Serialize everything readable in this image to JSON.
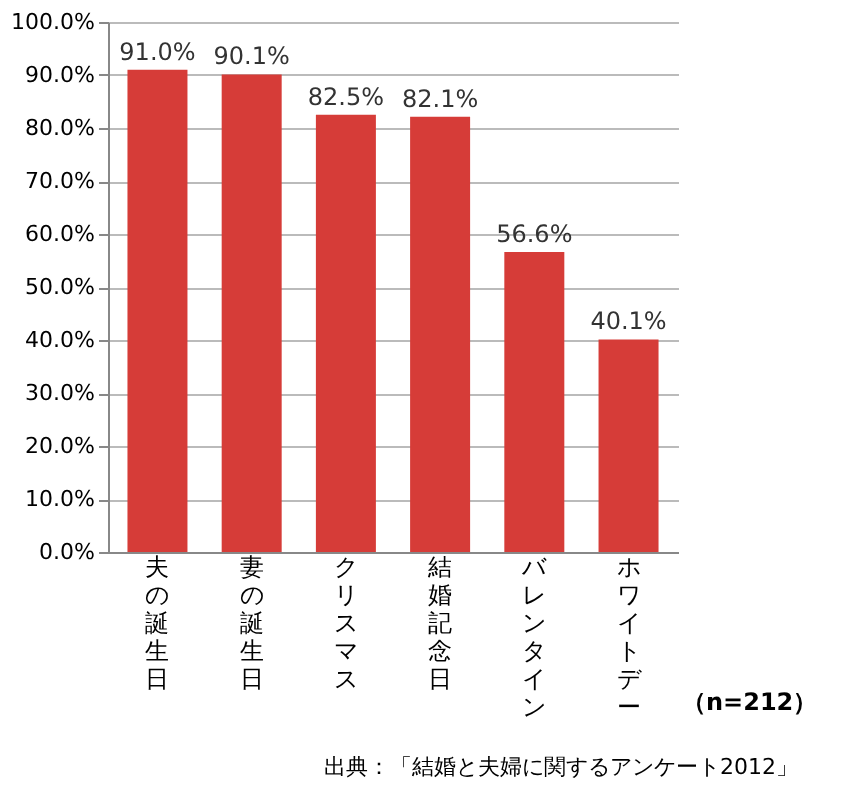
{
  "chart_data": {
    "type": "bar",
    "categories": [
      "夫の誕生日",
      "妻の誕生日",
      "クリスマス",
      "結婚記念日",
      "バレンタイン",
      "ホワイトデー"
    ],
    "values": [
      91.0,
      90.1,
      82.5,
      82.1,
      56.6,
      40.1
    ],
    "value_labels": [
      "91.0%",
      "90.1%",
      "82.5%",
      "82.1%",
      "56.6%",
      "40.1%"
    ],
    "color": "#d63c38",
    "ylim": [
      0,
      100
    ],
    "yticks": [
      {
        "value": 0,
        "label": "0.0%"
      },
      {
        "value": 10,
        "label": "10.0%"
      },
      {
        "value": 20,
        "label": "20.0%"
      },
      {
        "value": 30,
        "label": "30.0%"
      },
      {
        "value": 40,
        "label": "40.0%"
      },
      {
        "value": 50,
        "label": "50.0%"
      },
      {
        "value": 60,
        "label": "60.0%"
      },
      {
        "value": 70,
        "label": "70.0%"
      },
      {
        "value": 80,
        "label": "80.0%"
      },
      {
        "value": 90,
        "label": "90.0%"
      },
      {
        "value": 100,
        "label": "100.0%"
      }
    ],
    "grid": "y",
    "annotations": [
      "（n=212）",
      "出典：「結婚と夫婦に関するアンケート2012」"
    ]
  }
}
